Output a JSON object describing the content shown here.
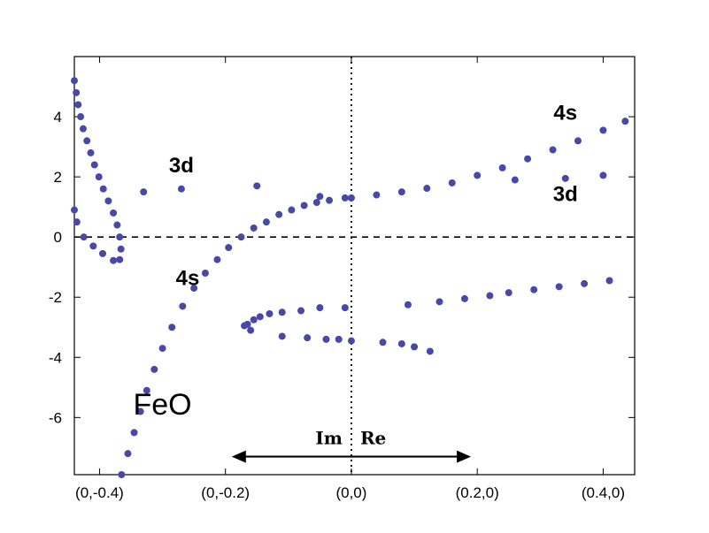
{
  "chart_data": {
    "type": "scatter",
    "title": "",
    "xlabel": "",
    "ylabel": "",
    "xlim": [
      -0.44,
      0.45
    ],
    "ylim": [
      -7.9,
      6.0
    ],
    "grid": false,
    "marker_color": "#4848a8",
    "x_ticks": [
      {
        "value": -0.4,
        "label": "(0,-0.4)"
      },
      {
        "value": -0.2,
        "label": "(0,-0.2)"
      },
      {
        "value": 0.0,
        "label": "(0,0)"
      },
      {
        "value": 0.2,
        "label": "(0.2,0)"
      },
      {
        "value": 0.4,
        "label": "(0.4,0)"
      }
    ],
    "y_ticks": [
      {
        "value": 4,
        "label": "4"
      },
      {
        "value": 2,
        "label": "2"
      },
      {
        "value": 0,
        "label": "0"
      },
      {
        "value": -2,
        "label": "-2"
      },
      {
        "value": -4,
        "label": "-4"
      },
      {
        "value": -6,
        "label": "-6"
      }
    ],
    "reference_lines": [
      {
        "orientation": "horizontal",
        "value": 0,
        "style": "dashed"
      },
      {
        "orientation": "vertical",
        "value": 0,
        "style": "dotted"
      }
    ],
    "annotations": [
      {
        "text": "3d",
        "x": -0.27,
        "y": 2.15,
        "style": "bold"
      },
      {
        "text": "4s",
        "x": -0.26,
        "y": -1.6,
        "style": "bold"
      },
      {
        "text": "4s",
        "x": 0.34,
        "y": 3.9,
        "style": "bold"
      },
      {
        "text": "3d",
        "x": 0.34,
        "y": 1.2,
        "style": "bold"
      },
      {
        "text": "FeO",
        "x": -0.3,
        "y": -5.9,
        "style": "large"
      }
    ],
    "arrow": {
      "left_label": "Im",
      "right_label": "Re",
      "y": -7.3,
      "x_from": -0.19,
      "x_to": 0.19
    },
    "series": [
      {
        "points": [
          [
            -0.444,
            5.99
          ],
          [
            -0.442,
            5.6
          ],
          [
            -0.44,
            5.2
          ],
          [
            -0.437,
            4.8
          ],
          [
            -0.434,
            4.4
          ],
          [
            -0.43,
            4.0
          ],
          [
            -0.426,
            3.6
          ],
          [
            -0.42,
            3.2
          ],
          [
            -0.414,
            2.8
          ],
          [
            -0.408,
            2.4
          ],
          [
            -0.401,
            2.0
          ],
          [
            -0.394,
            1.6
          ],
          [
            -0.386,
            1.2
          ],
          [
            -0.378,
            0.8
          ],
          [
            -0.372,
            0.4
          ],
          [
            -0.368,
            0.0
          ],
          [
            -0.366,
            -0.4
          ],
          [
            -0.368,
            -0.75
          ],
          [
            -0.378,
            -0.78
          ],
          [
            -0.395,
            -0.55
          ],
          [
            -0.41,
            -0.3
          ],
          [
            -0.425,
            0.0
          ],
          [
            -0.436,
            0.5
          ],
          [
            -0.44,
            0.9
          ],
          [
            -0.33,
            1.5
          ],
          [
            -0.27,
            1.6
          ],
          [
            -0.15,
            1.7
          ],
          [
            -0.05,
            1.35
          ],
          [
            -0.01,
            1.3
          ],
          [
            -0.365,
            -7.9
          ],
          [
            -0.355,
            -7.2
          ],
          [
            -0.345,
            -6.5
          ],
          [
            -0.335,
            -5.8
          ],
          [
            -0.325,
            -5.1
          ],
          [
            -0.313,
            -4.4
          ],
          [
            -0.3,
            -3.7
          ],
          [
            -0.285,
            -3.0
          ],
          [
            -0.268,
            -2.3
          ],
          [
            -0.25,
            -1.7
          ],
          [
            -0.232,
            -1.2
          ],
          [
            -0.213,
            -0.75
          ],
          [
            -0.195,
            -0.35
          ],
          [
            -0.175,
            0.0
          ],
          [
            -0.155,
            0.3
          ],
          [
            -0.135,
            0.5
          ],
          [
            -0.115,
            0.75
          ],
          [
            -0.095,
            0.9
          ],
          [
            -0.075,
            1.05
          ],
          [
            -0.055,
            1.15
          ],
          [
            -0.035,
            1.22
          ],
          [
            0.0,
            1.3
          ],
          [
            0.04,
            1.4
          ],
          [
            0.08,
            1.5
          ],
          [
            0.12,
            1.62
          ],
          [
            0.16,
            1.8
          ],
          [
            0.2,
            2.05
          ],
          [
            0.24,
            2.3
          ],
          [
            0.28,
            2.6
          ],
          [
            0.32,
            2.9
          ],
          [
            0.36,
            3.2
          ],
          [
            0.4,
            3.55
          ],
          [
            0.435,
            3.85
          ],
          [
            0.26,
            1.9
          ],
          [
            0.34,
            1.95
          ],
          [
            0.4,
            2.05
          ],
          [
            0.09,
            -2.25
          ],
          [
            0.14,
            -2.15
          ],
          [
            0.18,
            -2.05
          ],
          [
            0.22,
            -1.95
          ],
          [
            0.25,
            -1.85
          ],
          [
            0.29,
            -1.75
          ],
          [
            0.33,
            -1.65
          ],
          [
            0.37,
            -1.55
          ],
          [
            0.41,
            -1.45
          ],
          [
            -0.165,
            -2.9
          ],
          [
            -0.155,
            -2.75
          ],
          [
            -0.145,
            -2.65
          ],
          [
            -0.13,
            -2.55
          ],
          [
            -0.11,
            -2.5
          ],
          [
            -0.08,
            -2.45
          ],
          [
            -0.05,
            -2.35
          ],
          [
            -0.01,
            -2.35
          ],
          [
            -0.17,
            -2.95
          ],
          [
            -0.16,
            -3.1
          ],
          [
            -0.11,
            -3.3
          ],
          [
            -0.07,
            -3.35
          ],
          [
            -0.04,
            -3.4
          ],
          [
            -0.02,
            -3.4
          ],
          [
            0.0,
            -3.45
          ],
          [
            0.05,
            -3.5
          ],
          [
            0.08,
            -3.55
          ],
          [
            0.1,
            -3.65
          ],
          [
            0.125,
            -3.8
          ]
        ]
      }
    ]
  }
}
